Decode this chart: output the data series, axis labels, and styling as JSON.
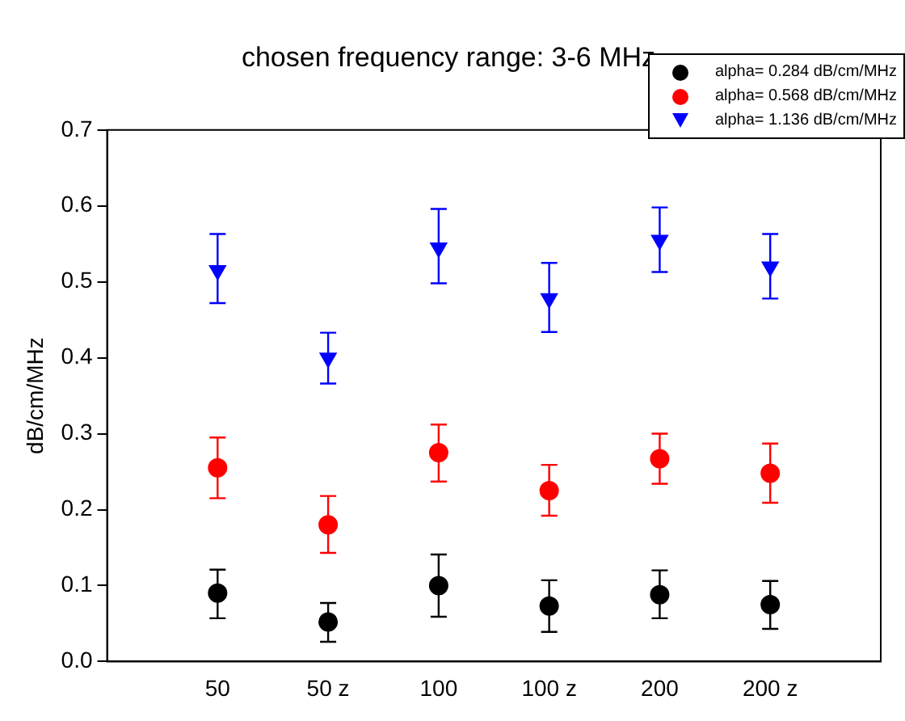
{
  "chart_data": {
    "type": "scatter",
    "title": "chosen frequency range: 3-6 MHz",
    "ylabel": "dB/cm/MHz",
    "categories": [
      "50",
      "50 z",
      "100",
      "100 z",
      "200",
      "200 z"
    ],
    "ylim": [
      0,
      0.7
    ],
    "yticks": [
      {
        "value": 0,
        "label": "0.0"
      },
      0.1,
      0.2,
      0.3,
      0.4,
      0.5,
      0.6,
      0.7
    ],
    "grid": false,
    "legend": "top right",
    "series": [
      {
        "name": "alpha= 0.284 dB/cm/MHz",
        "color": "#000000",
        "marker": "circle",
        "values": [
          0.09,
          0.052,
          0.1,
          0.073,
          0.088,
          0.075
        ],
        "errors": [
          [
            0.057,
            0.121
          ],
          [
            0.026,
            0.077
          ],
          [
            0.059,
            0.141
          ],
          [
            0.039,
            0.107
          ],
          [
            0.057,
            0.12
          ],
          [
            0.043,
            0.106
          ]
        ]
      },
      {
        "name": "alpha= 0.568 dB/cm/MHz",
        "color": "#ff0000",
        "marker": "circle",
        "values": [
          0.255,
          0.18,
          0.275,
          0.225,
          0.267,
          0.248
        ],
        "errors": [
          [
            0.215,
            0.295
          ],
          [
            0.143,
            0.218
          ],
          [
            0.237,
            0.312
          ],
          [
            0.192,
            0.259
          ],
          [
            0.234,
            0.3
          ],
          [
            0.209,
            0.287
          ]
        ]
      },
      {
        "name": "alpha= 1.136 dB/cm/MHz",
        "color": "#0000ff",
        "marker": "triangle",
        "values": [
          0.515,
          0.4,
          0.545,
          0.478,
          0.555,
          0.52
        ],
        "errors": [
          [
            0.472,
            0.563
          ],
          [
            0.366,
            0.433
          ],
          [
            0.498,
            0.596
          ],
          [
            0.434,
            0.525
          ],
          [
            0.513,
            0.598
          ],
          [
            0.478,
            0.563
          ]
        ]
      }
    ]
  }
}
